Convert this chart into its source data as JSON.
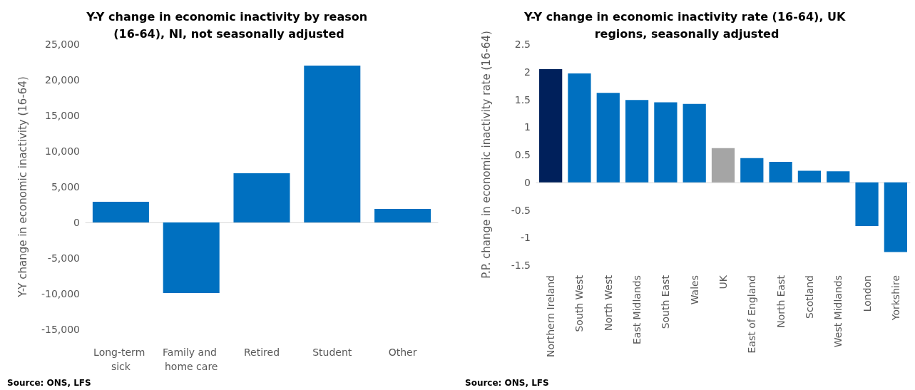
{
  "chart_data": [
    {
      "type": "bar",
      "title": "Y-Y change in economic inactivity by reason (16-64), NI, not seasonally adjusted",
      "ylabel": "Y-Y change in economic inactivity (16-64)",
      "categories": [
        "Long-term sick",
        "Family and home care",
        "Retired",
        "Student",
        "Other"
      ],
      "values": [
        2900,
        -9900,
        6900,
        22000,
        1900
      ],
      "color": "#0070c0",
      "ylim": [
        -15000,
        25000
      ],
      "yticks": [
        {
          "value": -15000,
          "label": "-15,000"
        },
        {
          "value": -10000,
          "label": "-10,000"
        },
        {
          "value": -5000,
          "label": "-5,000"
        },
        0,
        {
          "value": 5000,
          "label": "5,000"
        },
        {
          "value": 10000,
          "label": "10,000"
        },
        {
          "value": 15000,
          "label": "15,000"
        },
        {
          "value": 20000,
          "label": "20,000"
        },
        {
          "value": 25000,
          "label": "25,000"
        }
      ],
      "annotations": [
        "Source: ONS, LFS"
      ]
    },
    {
      "type": "bar",
      "title": "Y-Y change in economic inactivity rate (16-64), UK regions, seasonally adjusted",
      "ylabel": "P.P. change in economic inactivity rate (16-64)",
      "categories": [
        "Northern Ireland",
        "South West",
        "North West",
        "East Midlands",
        "South East",
        "Wales",
        "UK",
        "East of England",
        "North East",
        "Scotland",
        "West Midlands",
        "London",
        "Yorkshire"
      ],
      "values": [
        2.05,
        1.97,
        1.62,
        1.49,
        1.45,
        1.42,
        0.62,
        0.44,
        0.37,
        0.21,
        0.2,
        -0.79,
        -1.26
      ],
      "colors": [
        "#00205b",
        "#0070c0",
        "#0070c0",
        "#0070c0",
        "#0070c0",
        "#0070c0",
        "#a5a5a5",
        "#0070c0",
        "#0070c0",
        "#0070c0",
        "#0070c0",
        "#0070c0",
        "#0070c0"
      ],
      "ylim": [
        -1.5,
        2.5
      ],
      "yticks": [
        -1.5,
        -1,
        -0.5,
        0,
        0.5,
        1,
        1.5,
        2,
        2.5
      ],
      "annotations": [
        "Source: ONS, LFS"
      ]
    }
  ]
}
